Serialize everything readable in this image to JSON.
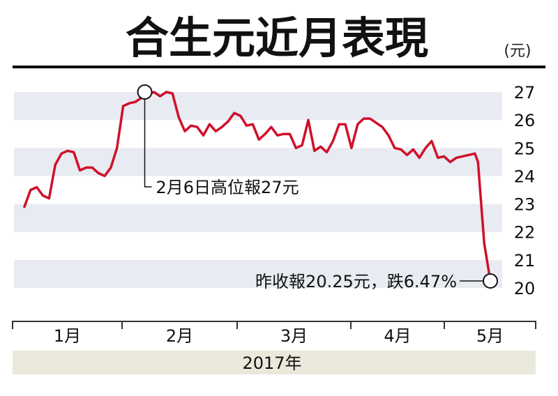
{
  "chart_data": {
    "type": "line",
    "title": "合生元近月表現",
    "unit_label": "(元)",
    "year_label": "2017年",
    "month_labels": [
      "1月",
      "2月",
      "3月",
      "4月",
      "5月"
    ],
    "y_ticks": [
      20,
      21,
      22,
      23,
      24,
      25,
      26,
      27
    ],
    "ylim": [
      19.8,
      27.3
    ],
    "grid": "alternating horizontal bands",
    "x_unit": "trading day (Jan–May 2017)",
    "xlim": [
      0,
      75.5
    ],
    "series": [
      {
        "color": "#d0102a",
        "points": [
          [
            0,
            22.9
          ],
          [
            1,
            23.5
          ],
          [
            2,
            23.6
          ],
          [
            3,
            23.3
          ],
          [
            4,
            23.2
          ],
          [
            5,
            24.4
          ],
          [
            6,
            24.8
          ],
          [
            7,
            24.9
          ],
          [
            8,
            24.85
          ],
          [
            9,
            24.2
          ],
          [
            10,
            24.3
          ],
          [
            11,
            24.3
          ],
          [
            12,
            24.1
          ],
          [
            13,
            24.0
          ],
          [
            14,
            24.3
          ],
          [
            15,
            25.0
          ],
          [
            16,
            26.5
          ],
          [
            17,
            26.6
          ],
          [
            18,
            26.65
          ],
          [
            19,
            26.8
          ],
          [
            19.5,
            27.0
          ],
          [
            20,
            26.9
          ],
          [
            21,
            27.0
          ],
          [
            22,
            26.85
          ],
          [
            23,
            27.0
          ],
          [
            24,
            26.95
          ],
          [
            25,
            26.1
          ],
          [
            26,
            25.6
          ],
          [
            27,
            25.8
          ],
          [
            28,
            25.75
          ],
          [
            29,
            25.45
          ],
          [
            30,
            25.85
          ],
          [
            31,
            25.6
          ],
          [
            32,
            25.75
          ],
          [
            33,
            25.95
          ],
          [
            34,
            26.25
          ],
          [
            35,
            26.15
          ],
          [
            36,
            25.8
          ],
          [
            37,
            25.85
          ],
          [
            38,
            25.3
          ],
          [
            39,
            25.5
          ],
          [
            40,
            25.75
          ],
          [
            41,
            25.45
          ],
          [
            42,
            25.5
          ],
          [
            43,
            25.5
          ],
          [
            44,
            25.0
          ],
          [
            45,
            25.1
          ],
          [
            46,
            26.0
          ],
          [
            47,
            24.9
          ],
          [
            48,
            25.05
          ],
          [
            49,
            24.85
          ],
          [
            50,
            25.25
          ],
          [
            51,
            25.85
          ],
          [
            52,
            25.85
          ],
          [
            53,
            25.0
          ],
          [
            54,
            25.85
          ],
          [
            55,
            26.05
          ],
          [
            56,
            26.05
          ],
          [
            57,
            25.9
          ],
          [
            58,
            25.75
          ],
          [
            59,
            25.45
          ],
          [
            60,
            25.0
          ],
          [
            61,
            24.95
          ],
          [
            62,
            24.75
          ],
          [
            63,
            24.95
          ],
          [
            64,
            24.65
          ],
          [
            65,
            25.0
          ],
          [
            66,
            25.25
          ],
          [
            67,
            24.65
          ],
          [
            68,
            24.7
          ],
          [
            69,
            24.5
          ],
          [
            70,
            24.65
          ],
          [
            71,
            24.7
          ],
          [
            72,
            24.75
          ],
          [
            73,
            24.8
          ],
          [
            73.5,
            24.5
          ],
          [
            74.5,
            21.6
          ],
          [
            75.5,
            20.25
          ]
        ]
      }
    ],
    "annotations": [
      {
        "text": "2月6日高位報27元",
        "x": 19.5,
        "y": 27.0
      },
      {
        "text": "昨收報20.25元，跌6.47%",
        "x": 75.5,
        "y": 20.25
      }
    ]
  }
}
